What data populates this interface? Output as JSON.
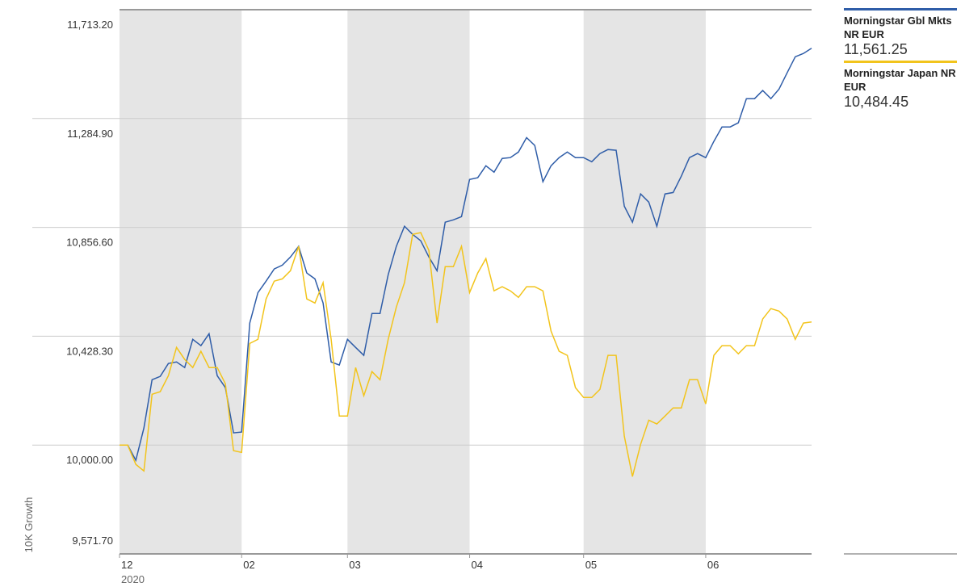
{
  "chart_data": {
    "type": "line",
    "y_label": "10K Growth",
    "x_sublabel": "2020",
    "categories": [
      "12",
      null,
      null,
      null,
      null,
      null,
      null,
      null,
      null,
      null,
      null,
      null,
      null,
      null,
      null,
      "02",
      null,
      null,
      null,
      null,
      null,
      null,
      null,
      null,
      null,
      null,
      null,
      null,
      "03",
      null,
      null,
      null,
      null,
      null,
      null,
      null,
      null,
      null,
      null,
      null,
      null,
      null,
      null,
      "04",
      null,
      null,
      null,
      null,
      null,
      null,
      null,
      null,
      null,
      null,
      null,
      null,
      null,
      "05",
      null,
      null,
      null,
      null,
      null,
      null,
      null,
      null,
      null,
      null,
      null,
      null,
      null,
      null,
      "06",
      null,
      null,
      null,
      null,
      null,
      null,
      null,
      null,
      null,
      null,
      null,
      null,
      null
    ],
    "series": [
      {
        "name": "Morningstar Gbl Mkts NR EUR",
        "color": "#2f5da8",
        "latest_label": "11,561.25",
        "values": [
          10000,
          10000,
          9940,
          10067,
          10257,
          10270,
          10321,
          10327,
          10305,
          10416,
          10391,
          10438,
          10273,
          10226,
          10048,
          10051,
          10480,
          10600,
          10645,
          10693,
          10708,
          10740,
          10782,
          10677,
          10654,
          10559,
          10327,
          10315,
          10416,
          10384,
          10353,
          10518,
          10518,
          10670,
          10782,
          10861,
          10829,
          10804,
          10740,
          10686,
          10877,
          10886,
          10899,
          11045,
          11052,
          11099,
          11074,
          11128,
          11131,
          11153,
          11210,
          11179,
          11036,
          11099,
          11131,
          11153,
          11131,
          11131,
          11115,
          11147,
          11163,
          11160,
          10940,
          10877,
          10988,
          10956,
          10861,
          10988,
          10994,
          11058,
          11131,
          11147,
          11131,
          11195,
          11252,
          11252,
          11268,
          11363,
          11363,
          11395,
          11363,
          11401,
          11465,
          11528,
          11541,
          11561.25
        ]
      },
      {
        "name": "Morningstar Japan NR EUR",
        "color": "#f2c41c",
        "latest_label": "10,484.45",
        "values": [
          10000,
          10000,
          9924,
          9898,
          10200,
          10210,
          10273,
          10384,
          10337,
          10305,
          10369,
          10305,
          10305,
          10241,
          9978,
          9971,
          10400,
          10416,
          10575,
          10645,
          10654,
          10686,
          10782,
          10575,
          10559,
          10639,
          10416,
          10114,
          10114,
          10305,
          10194,
          10289,
          10257,
          10416,
          10543,
          10639,
          10829,
          10836,
          10766,
          10480,
          10702,
          10702,
          10782,
          10600,
          10677,
          10734,
          10607,
          10623,
          10607,
          10581,
          10623,
          10623,
          10607,
          10448,
          10369,
          10353,
          10226,
          10187,
          10187,
          10219,
          10353,
          10353,
          10035,
          9876,
          10003,
          10098,
          10083,
          10114,
          10146,
          10146,
          10257,
          10257,
          10162,
          10353,
          10391,
          10391,
          10359,
          10391,
          10391,
          10496,
          10537,
          10527,
          10496,
          10416,
          10480,
          10484.45
        ]
      }
    ],
    "ylim": [
      9571.7,
      11713.2
    ],
    "yticks": [
      {
        "value": 9571.7,
        "label": "9,571.70"
      },
      {
        "value": 10000,
        "label": "10,000.00"
      },
      {
        "value": 10428.3,
        "label": "10,428.30"
      },
      {
        "value": 10856.6,
        "label": "10,856.60"
      },
      {
        "value": 11284.9,
        "label": "11,284.90"
      },
      {
        "value": 11713.2,
        "label": "11,713.20"
      }
    ],
    "grid": true,
    "shaded_bands": true
  }
}
